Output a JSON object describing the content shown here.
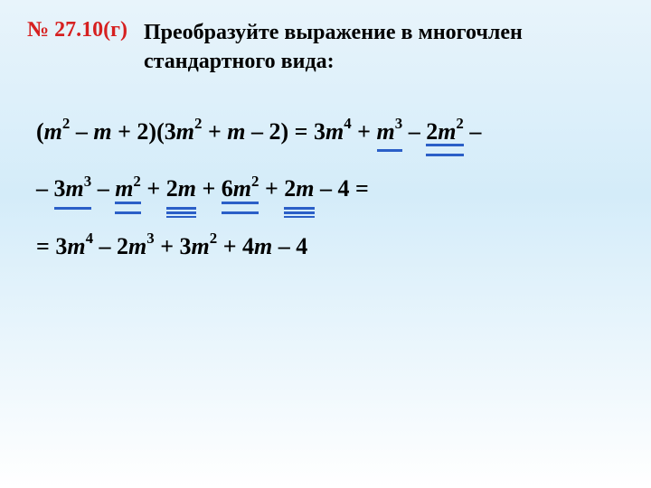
{
  "header": {
    "problem_number": "№ 27.10(г)",
    "task_text": "Преобразуйте выражение в многочлен стандартного вида:"
  },
  "colors": {
    "problem_number": "#d62020",
    "underline": "#2b5fc7",
    "text": "#000000",
    "bg_top": "#e8f4fb",
    "bg_mid": "#d4ecf9",
    "bg_bottom": "#ffffff"
  },
  "typography": {
    "header_fontsize": 24,
    "math_fontsize": 26,
    "font_family": "Georgia, Times New Roman, serif",
    "weight": "bold"
  },
  "math": {
    "line1": {
      "lhs_open": "(",
      "t1_coef": "",
      "t1_var": "m",
      "t1_exp": "2",
      "op1": " – ",
      "t2_var": "m",
      "op2": " + ",
      "t3": "2",
      "lhs_close": ")(",
      "t4_coef": "3",
      "t4_var": "m",
      "t4_exp": "2",
      "op3": " + ",
      "t5_var": "m",
      "op4": " – ",
      "t6": "2",
      "rhs_close": ") = ",
      "r1_coef": "3",
      "r1_var": "m",
      "r1_exp": "4",
      "op5": " + ",
      "r2_pre": " ",
      "r2_var": "m",
      "r2_exp": "3",
      "op6": " – ",
      "r3_coef": "2",
      "r3_var": "m",
      "r3_exp": "2",
      "op7": " –"
    },
    "line2": {
      "start": "– ",
      "t1_coef": "3",
      "t1_var": "m",
      "t1_exp": "3",
      "op1": " – ",
      "t2_var": "m",
      "t2_exp": "2",
      "op2": " + ",
      "t3_coef": "2",
      "t3_var": "m",
      "op3": " + ",
      "t4_coef": "6",
      "t4_var": "m",
      "t4_exp": "2",
      "op4": " + ",
      "t5_coef": "2",
      "t5_var": "m",
      "op5": " – ",
      "t6": "4",
      "end": " ="
    },
    "line3": {
      "start": "= ",
      "t1_coef": "3",
      "t1_var": "m",
      "t1_exp": "4",
      "op1": " – ",
      "t2_coef": "2",
      "t2_var": "m",
      "t2_exp": "3",
      "op2": " + ",
      "t3_coef": "3",
      "t3_var": "m",
      "t3_exp": "2",
      "op3": " + ",
      "t4_coef": "4",
      "t4_var": "m",
      "op4": " – ",
      "t5": "4"
    }
  },
  "underlines": {
    "line1_r2": "single",
    "line1_r3": "double",
    "line2_t1": "single",
    "line2_t2": "double",
    "line2_t3": "triple",
    "line2_t4": "double",
    "line2_t5": "triple"
  }
}
